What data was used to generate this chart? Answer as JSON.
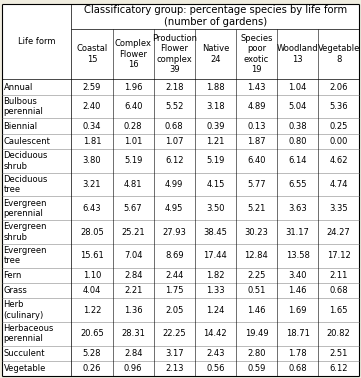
{
  "title_line1": "Classificatory group: percentage species by life form",
  "title_line2": "(number of gardens)",
  "col_headers": [
    "Coastal\n15",
    "Complex\nFlower\n16",
    "Production\nFlower\ncomplex\n39",
    "Native\n24",
    "Species\npoor\nexotic\n19",
    "Woodland\n13",
    "Vegetable\n8"
  ],
  "row_labels": [
    "Annual",
    "Bulbous\nperennial",
    "Biennial",
    "Caulescent",
    "Deciduous\nshrub",
    "Deciduous\ntree",
    "Evergreen\nperennial",
    "Evergreen\nshrub",
    "Evergreen\ntree",
    "Fern",
    "Grass",
    "Herb\n(culinary)",
    "Herbaceous\nperennial",
    "Succulent",
    "Vegetable"
  ],
  "data": [
    [
      2.59,
      1.96,
      2.18,
      1.88,
      1.43,
      1.04,
      2.06
    ],
    [
      2.4,
      6.4,
      5.52,
      3.18,
      4.89,
      5.04,
      5.36
    ],
    [
      0.34,
      0.28,
      0.68,
      0.39,
      0.13,
      0.38,
      0.25
    ],
    [
      1.81,
      1.01,
      1.07,
      1.21,
      1.87,
      0.8,
      0.0
    ],
    [
      3.8,
      5.19,
      6.12,
      5.19,
      6.4,
      6.14,
      4.62
    ],
    [
      3.21,
      4.81,
      4.99,
      4.15,
      5.77,
      6.55,
      4.74
    ],
    [
      6.43,
      5.67,
      4.95,
      3.5,
      5.21,
      3.63,
      3.35
    ],
    [
      28.05,
      25.21,
      27.93,
      38.45,
      30.23,
      31.17,
      24.27
    ],
    [
      15.61,
      7.04,
      8.69,
      17.44,
      12.84,
      13.58,
      17.12
    ],
    [
      1.1,
      2.84,
      2.44,
      1.82,
      2.25,
      3.4,
      2.11
    ],
    [
      4.04,
      2.21,
      1.75,
      1.33,
      0.51,
      1.46,
      0.68
    ],
    [
      1.22,
      1.36,
      2.05,
      1.24,
      1.46,
      1.69,
      1.65
    ],
    [
      20.65,
      28.31,
      22.25,
      14.42,
      19.49,
      18.71,
      20.82
    ],
    [
      5.28,
      2.84,
      3.17,
      2.43,
      2.8,
      1.78,
      2.51
    ],
    [
      0.26,
      0.96,
      2.13,
      0.56,
      0.59,
      0.68,
      6.12
    ]
  ],
  "row_line_counts": [
    1,
    2,
    1,
    1,
    2,
    2,
    2,
    2,
    2,
    1,
    1,
    2,
    2,
    1,
    1
  ],
  "font_size": 6.0,
  "header_font_size": 6.0,
  "title_font_size": 7.2,
  "bg_color": "#f0ede0",
  "white": "#ffffff",
  "line_color_outer": "#000000",
  "line_color_inner": "#888888"
}
